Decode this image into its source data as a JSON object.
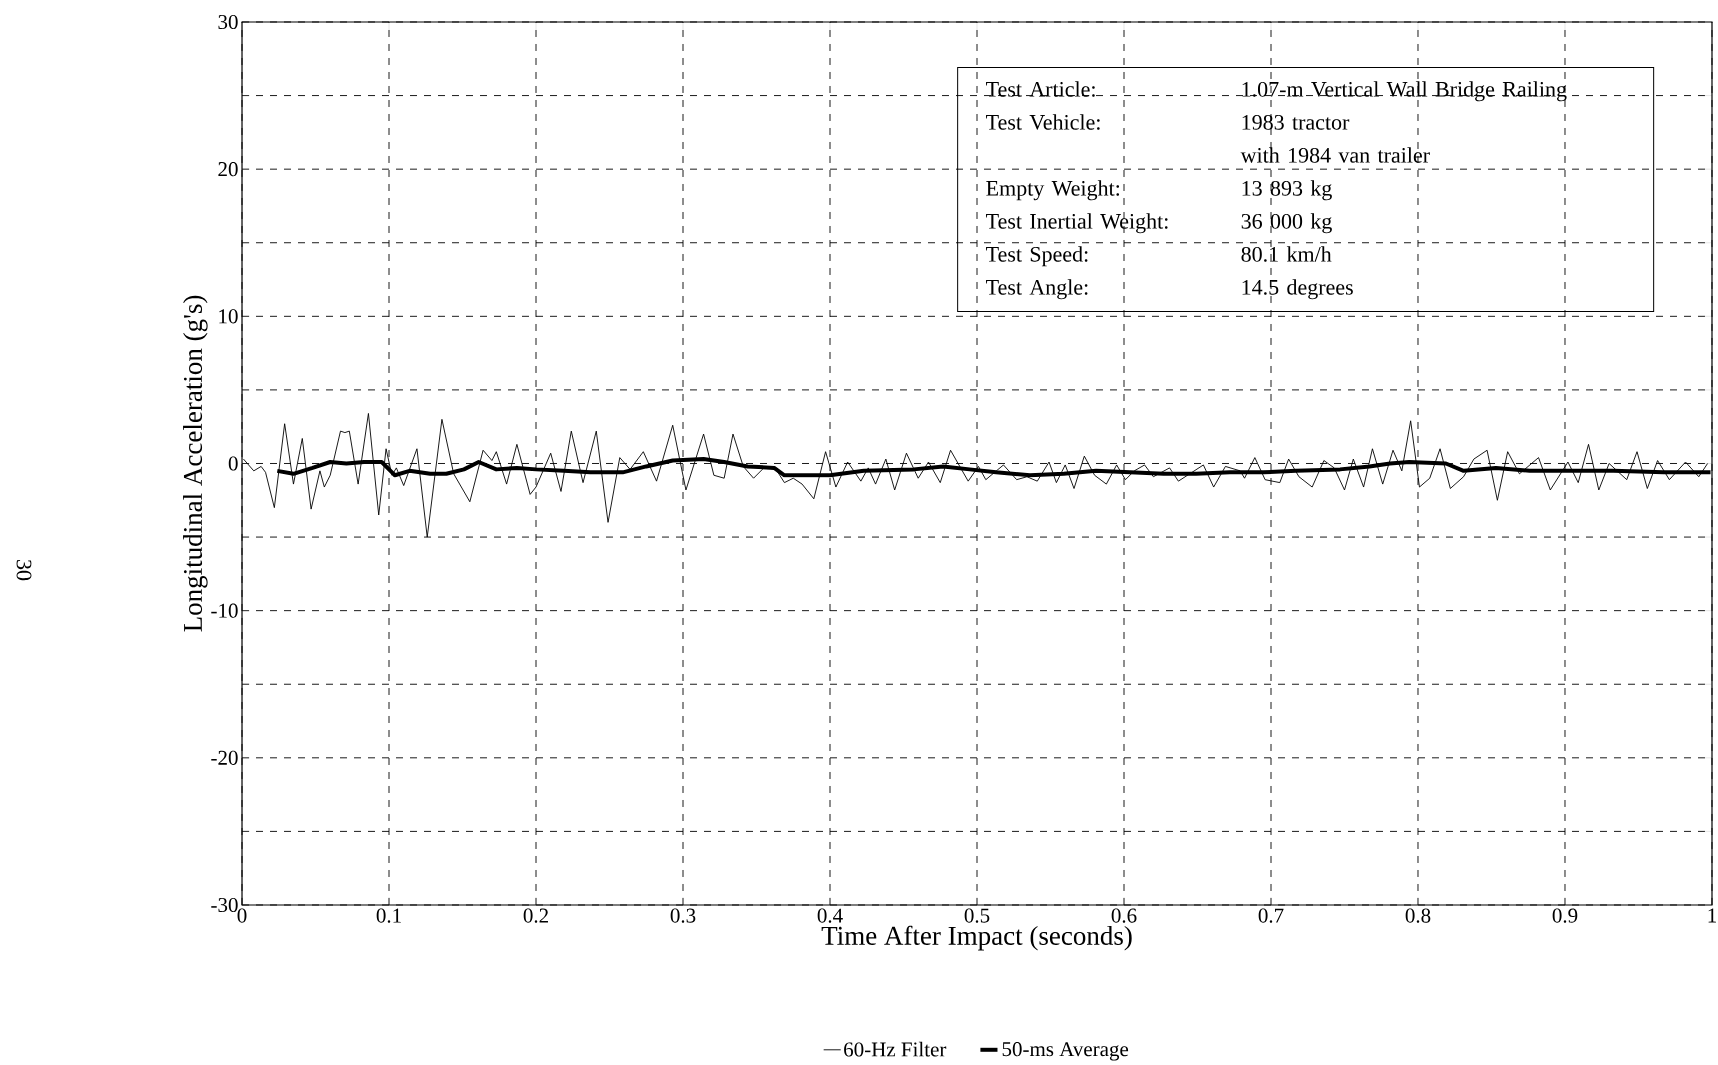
{
  "chart_data": {
    "type": "line",
    "xlabel": "Time After Impact (seconds)",
    "ylabel": "Longitudinal Acceleration (g's)",
    "annotations": [
      "30",
      "Test Article:",
      "1.07-m Vertical Wall Bridge Railing",
      "Test Vehicle:",
      "1983 tractor",
      "with 1984 van trailer",
      "Empty Weight:",
      "13 893 kg",
      "Test Inertial Weight:",
      "36 000 kg",
      "Test Speed:",
      "80.1 km/h",
      "Test Angle:",
      "14.5 degrees"
    ],
    "xlim": [
      0,
      1
    ],
    "ylim": [
      -30,
      30
    ],
    "xticks": [
      0,
      0.1,
      0.2,
      0.3,
      0.4,
      0.5,
      0.6,
      0.7,
      0.8,
      0.9,
      1
    ],
    "yticks": [
      -30,
      {
        "value": -25,
        "label": null
      },
      -20,
      {
        "value": -15,
        "label": null
      },
      -10,
      {
        "value": -5,
        "label": null
      },
      0,
      {
        "value": 5,
        "label": null
      },
      10,
      {
        "value": 15,
        "label": null
      },
      20,
      {
        "value": 25,
        "label": null
      },
      30
    ],
    "grid": true,
    "legend": "bottom",
    "line_style": "solid",
    "marker": "none",
    "series": [
      {
        "name": "60-Hz Filter",
        "color": "#000000",
        "x": [
          0.001,
          0.008,
          0.013,
          0.016,
          0.022,
          0.029,
          0.035,
          0.041,
          0.047,
          0.053,
          0.056,
          0.06,
          0.067,
          0.07,
          0.073,
          0.079,
          0.086,
          0.093,
          0.098,
          0.102,
          0.105,
          0.11,
          0.119,
          0.126,
          0.136,
          0.144,
          0.155,
          0.164,
          0.17,
          0.173,
          0.18,
          0.187,
          0.196,
          0.2,
          0.21,
          0.217,
          0.224,
          0.232,
          0.241,
          0.249,
          0.257,
          0.264,
          0.273,
          0.282,
          0.293,
          0.302,
          0.314,
          0.321,
          0.328,
          0.334,
          0.341,
          0.348,
          0.355,
          0.362,
          0.369,
          0.375,
          0.381,
          0.389,
          0.397,
          0.404,
          0.412,
          0.421,
          0.426,
          0.431,
          0.438,
          0.444,
          0.452,
          0.46,
          0.467,
          0.475,
          0.482,
          0.494,
          0.501,
          0.506,
          0.518,
          0.527,
          0.534,
          0.541,
          0.549,
          0.554,
          0.56,
          0.566,
          0.573,
          0.58,
          0.588,
          0.595,
          0.601,
          0.607,
          0.614,
          0.62,
          0.631,
          0.637,
          0.654,
          0.661,
          0.669,
          0.679,
          0.682,
          0.689,
          0.696,
          0.706,
          0.712,
          0.719,
          0.728,
          0.736,
          0.743,
          0.75,
          0.756,
          0.763,
          0.769,
          0.776,
          0.783,
          0.789,
          0.795,
          0.801,
          0.808,
          0.815,
          0.822,
          0.831,
          0.838,
          0.847,
          0.854,
          0.861,
          0.869,
          0.882,
          0.89,
          0.902,
          0.909,
          0.916,
          0.923,
          0.93,
          0.942,
          0.949,
          0.956,
          0.963,
          0.971,
          0.982,
          0.991,
          0.997
        ],
        "values": [
          0.3,
          -0.5,
          -0.2,
          -0.6,
          -3.0,
          2.7,
          -1.4,
          1.7,
          -3.1,
          -0.5,
          -1.6,
          -0.8,
          2.2,
          2.1,
          2.2,
          -1.4,
          3.4,
          -3.5,
          1.0,
          -0.8,
          -0.3,
          -1.5,
          1.0,
          -5.0,
          3.0,
          -0.7,
          -2.6,
          0.9,
          0.2,
          0.8,
          -1.4,
          1.3,
          -2.1,
          -1.6,
          0.7,
          -1.9,
          2.2,
          -1.3,
          2.2,
          -4.0,
          0.4,
          -0.4,
          0.8,
          -1.2,
          2.6,
          -1.8,
          2.0,
          -0.8,
          -1.0,
          2.0,
          -0.2,
          -1.0,
          -0.3,
          -0.2,
          -1.3,
          -1.0,
          -1.4,
          -2.4,
          0.8,
          -1.6,
          0.1,
          -1.2,
          -0.3,
          -1.4,
          0.3,
          -1.8,
          0.7,
          -1.0,
          0.1,
          -1.3,
          0.9,
          -1.2,
          -0.2,
          -1.1,
          -0.1,
          -1.1,
          -0.9,
          -1.2,
          0.1,
          -1.3,
          -0.1,
          -1.7,
          0.5,
          -0.8,
          -1.4,
          -0.1,
          -1.1,
          -0.5,
          -0.1,
          -0.9,
          -0.3,
          -1.2,
          -0.1,
          -1.6,
          -0.2,
          -0.5,
          -1.0,
          0.4,
          -1.1,
          -1.3,
          0.3,
          -0.9,
          -1.6,
          0.2,
          -0.3,
          -1.8,
          0.3,
          -1.6,
          1.0,
          -1.4,
          0.9,
          -0.5,
          2.9,
          -1.6,
          -1.0,
          1.0,
          -1.7,
          -0.9,
          0.3,
          0.9,
          -2.5,
          0.8,
          -0.7,
          0.4,
          -1.8,
          0.1,
          -1.3,
          1.3,
          -1.8,
          0.0,
          -1.1,
          0.8,
          -1.7,
          0.2,
          -1.1,
          0.1,
          -0.9,
          0.0
        ]
      },
      {
        "name": "50-ms Average",
        "color": "#000000",
        "x": [
          0.024,
          0.035,
          0.048,
          0.06,
          0.071,
          0.083,
          0.095,
          0.101,
          0.104,
          0.114,
          0.128,
          0.139,
          0.151,
          0.161,
          0.173,
          0.187,
          0.2,
          0.219,
          0.237,
          0.259,
          0.275,
          0.293,
          0.314,
          0.328,
          0.344,
          0.362,
          0.369,
          0.4,
          0.423,
          0.457,
          0.477,
          0.495,
          0.513,
          0.536,
          0.559,
          0.581,
          0.604,
          0.627,
          0.649,
          0.672,
          0.695,
          0.717,
          0.747,
          0.767,
          0.781,
          0.794,
          0.819,
          0.831,
          0.853,
          0.876,
          0.899,
          0.933,
          0.967,
          0.999
        ],
        "values": [
          -0.5,
          -0.7,
          -0.3,
          0.1,
          0.0,
          0.1,
          0.1,
          -0.5,
          -0.8,
          -0.5,
          -0.7,
          -0.7,
          -0.4,
          0.1,
          -0.4,
          -0.3,
          -0.4,
          -0.5,
          -0.6,
          -0.6,
          -0.2,
          0.2,
          0.3,
          0.1,
          -0.2,
          -0.3,
          -0.8,
          -0.8,
          -0.5,
          -0.4,
          -0.2,
          -0.4,
          -0.6,
          -0.8,
          -0.7,
          -0.5,
          -0.6,
          -0.7,
          -0.7,
          -0.6,
          -0.6,
          -0.5,
          -0.4,
          -0.2,
          0.0,
          0.1,
          0.0,
          -0.5,
          -0.3,
          -0.5,
          -0.5,
          -0.5,
          -0.6,
          -0.6
        ]
      }
    ]
  }
}
